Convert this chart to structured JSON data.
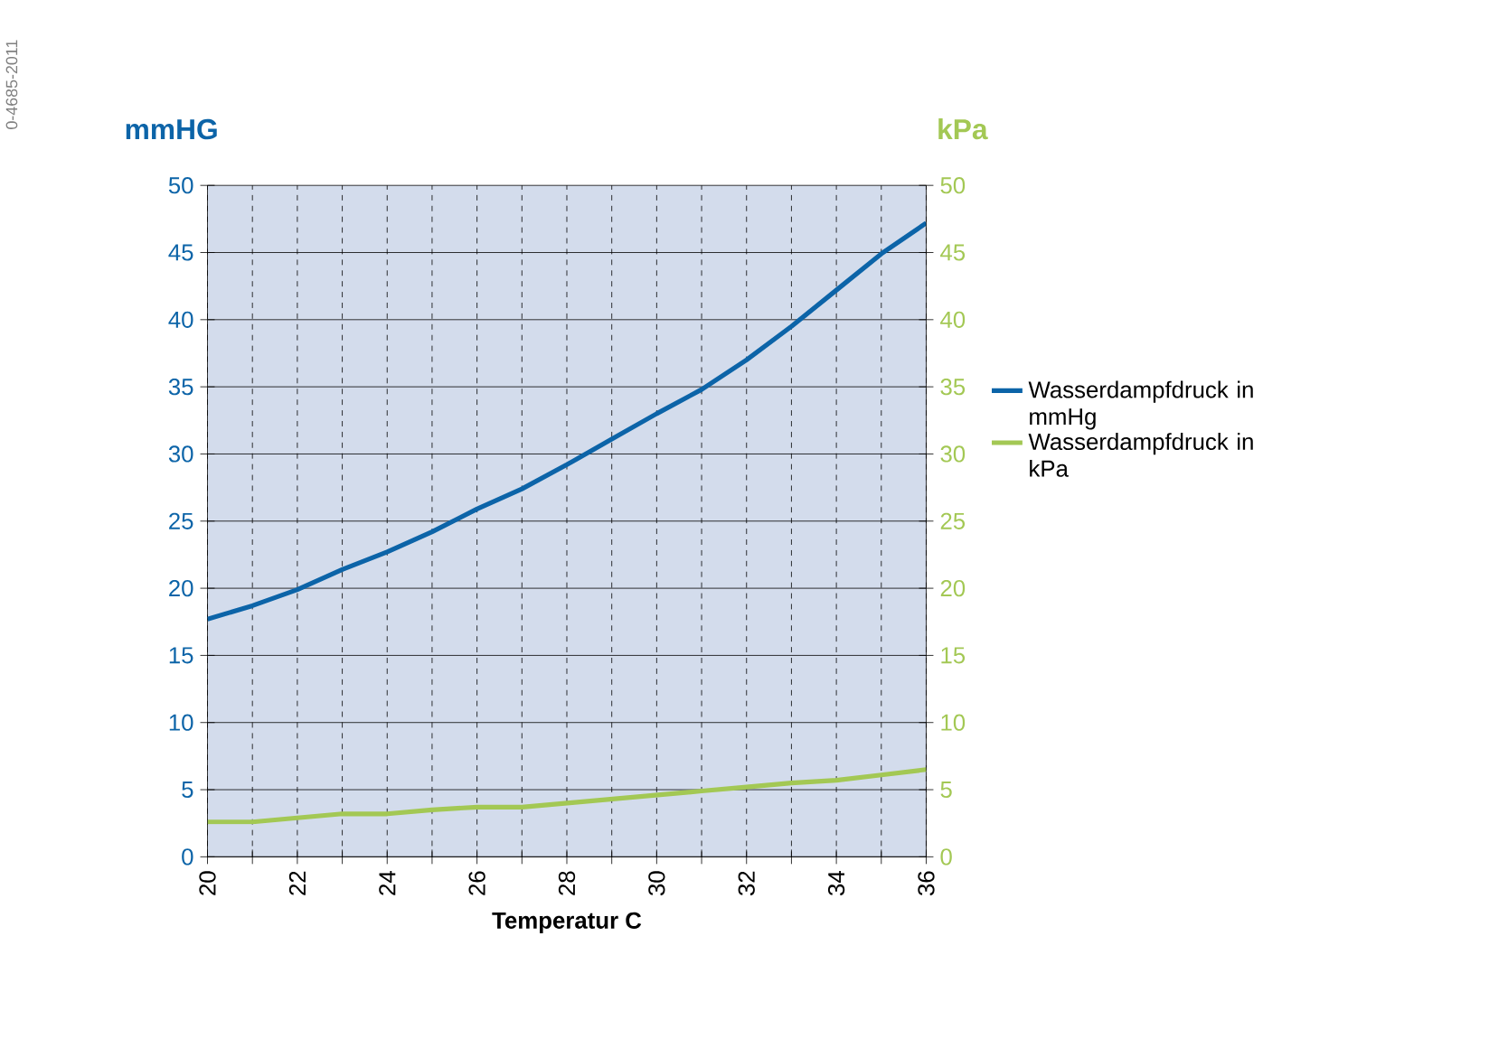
{
  "chart_data": {
    "type": "line",
    "x": [
      20,
      21,
      22,
      23,
      24,
      25,
      26,
      27,
      28,
      29,
      30,
      31,
      32,
      33,
      34,
      35,
      36
    ],
    "series": [
      {
        "name": "Wasserdampfdruck in mmHg",
        "color": "#0c64a8",
        "values": [
          17.7,
          18.7,
          19.9,
          21.4,
          22.7,
          24.2,
          25.9,
          27.4,
          29.2,
          31.1,
          33.0,
          34.8,
          37.0,
          39.5,
          42.2,
          44.9,
          47.2
        ]
      },
      {
        "name": "Wasserdampfdruck in kPa",
        "color": "#a3c854",
        "axis": "y2",
        "values": [
          2.6,
          2.6,
          2.9,
          3.2,
          3.2,
          3.5,
          3.7,
          3.7,
          4.0,
          4.3,
          4.6,
          4.9,
          5.2,
          5.5,
          5.7,
          6.1,
          6.5
        ]
      }
    ],
    "xlabel": "Temperatur C",
    "ylabel": "mmHG",
    "y2label": "kPa",
    "xlim": [
      20,
      36
    ],
    "xticks": [
      20,
      22,
      24,
      26,
      28,
      30,
      32,
      34,
      36
    ],
    "ylim": [
      0,
      50
    ],
    "yticks": [
      0,
      5,
      10,
      15,
      20,
      25,
      30,
      35,
      40,
      45,
      50
    ],
    "y2lim": [
      0,
      50
    ],
    "y2ticks": [
      0,
      5,
      10,
      15,
      20,
      25,
      30,
      35,
      40,
      45,
      50
    ],
    "grid": true,
    "legend": "right",
    "marker": "none",
    "line_style": "solid",
    "annotations": [
      "0-4685-2011"
    ]
  }
}
